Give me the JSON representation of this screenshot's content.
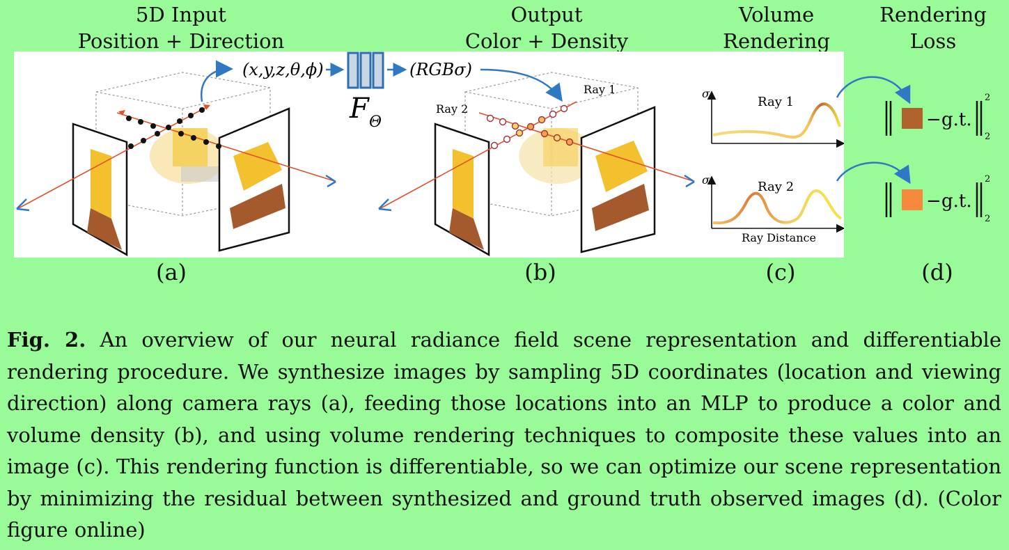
{
  "headers": {
    "a": {
      "line1": "5D Input",
      "line2": "Position + Direction"
    },
    "b": {
      "line1": "Output",
      "line2": "Color + Density"
    },
    "c": {
      "line1": "Volume",
      "line2": "Rendering"
    },
    "d": {
      "line1": "Rendering",
      "line2": "Loss"
    }
  },
  "panel_labels": {
    "a": "(a)",
    "b": "(b)",
    "c": "(c)",
    "d": "(d)"
  },
  "diagram": {
    "input_vector": "(x,y,z,θ,ϕ)",
    "network_label": "F",
    "network_subscript": "Θ",
    "output_vector": "(RGBσ)",
    "ray1_label": "Ray 1",
    "ray2_label": "Ray 2",
    "sigma_label": "σ",
    "ray_distance_label": "Ray Distance",
    "gt_label": "g.t.",
    "norm_sub": "2",
    "norm_sup": "2",
    "minus_sign": "−",
    "colors": {
      "ray": "#e2502a",
      "arrow_blue": "#2f78c4",
      "swatch1": "#b0622c",
      "swatch2": "#f58a3c",
      "network_fill": "#c9d6e3",
      "network_stroke": "#2f6fb0"
    },
    "icons": [
      "camera-ray-arrowhead",
      "neural-network-icon",
      "curved-arrow-icon",
      "color-swatch"
    ]
  },
  "caption": {
    "fig_label": "Fig. 2.",
    "text": "An overview of our neural radiance field scene representation and differentiable rendering procedure. We synthesize images by sampling 5D coordinates (location and viewing direction) along camera rays (a), feeding those locations into an MLP to produce a color and volume density (b), and using volume rendering techniques to composite these values into an image (c). This rendering function is differentiable, so we can optimize our scene representation by minimizing the residual between synthesized and ground truth observed images (d). (Color figure online)"
  }
}
